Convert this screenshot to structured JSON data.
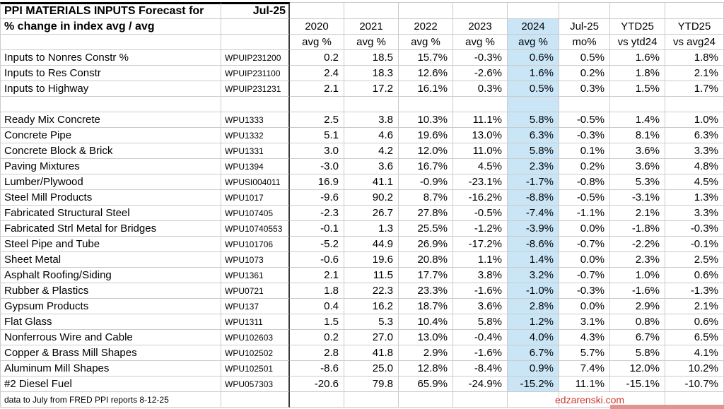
{
  "header": {
    "title": "PPI MATERIALS INPUTS Forecast for",
    "date": "Jul-25",
    "subtitle": "% change in index avg / avg"
  },
  "table": {
    "years": [
      "2020",
      "2021",
      "2022",
      "2023",
      "2024",
      "Jul-25",
      "YTD25",
      "YTD25"
    ],
    "units": [
      "avg %",
      "avg %",
      "avg %",
      "avg %",
      "avg %",
      "mo%",
      "vs ytd24",
      "vs avg24"
    ],
    "rows": [
      {
        "label": "Inputs to Nonres Constr %",
        "code": "WPUIP231200",
        "values": [
          "0.2",
          "18.5",
          "15.7%",
          "-0.3%",
          "0.6%",
          "0.5%",
          "1.6%",
          "1.8%"
        ]
      },
      {
        "label": "Inputs to Res Constr",
        "code": "WPUIP231100",
        "values": [
          "2.4",
          "18.3",
          "12.6%",
          "-2.6%",
          "1.6%",
          "0.2%",
          "1.8%",
          "2.1%"
        ]
      },
      {
        "label": "Inputs to Highway",
        "code": "WPUIP231231",
        "values": [
          "2.1",
          "17.2",
          "16.1%",
          "0.3%",
          "0.5%",
          "0.3%",
          "1.5%",
          "1.7%"
        ]
      },
      {
        "label": "",
        "code": "",
        "values": [
          "",
          "",
          "",
          "",
          "",
          "",
          "",
          ""
        ]
      },
      {
        "label": "Ready Mix Concrete",
        "code": "WPU1333",
        "values": [
          "2.5",
          "3.8",
          "10.3%",
          "11.1%",
          "5.8%",
          "-0.5%",
          "1.4%",
          "1.0%"
        ]
      },
      {
        "label": "Concrete Pipe",
        "code": "WPU1332",
        "values": [
          "5.1",
          "4.6",
          "19.6%",
          "13.0%",
          "6.3%",
          "-0.3%",
          "8.1%",
          "6.3%"
        ]
      },
      {
        "label": "Concrete Block & Brick",
        "code": "WPU1331",
        "values": [
          "3.0",
          "4.2",
          "12.0%",
          "11.0%",
          "5.8%",
          "0.1%",
          "3.6%",
          "3.3%"
        ]
      },
      {
        "label": "Paving Mixtures",
        "code": "WPU1394",
        "values": [
          "-3.0",
          "3.6",
          "16.7%",
          "4.5%",
          "2.3%",
          "0.2%",
          "3.6%",
          "4.8%"
        ]
      },
      {
        "label": "Lumber/Plywood",
        "code": "WPUSI004011",
        "values": [
          "16.9",
          "41.1",
          "-0.9%",
          "-23.1%",
          "-1.7%",
          "-0.8%",
          "5.3%",
          "4.5%"
        ]
      },
      {
        "label": "Steel Mill Products",
        "code": "WPU1017",
        "values": [
          "-9.6",
          "90.2",
          "8.7%",
          "-16.2%",
          "-8.8%",
          "-0.5%",
          "-3.1%",
          "1.3%"
        ]
      },
      {
        "label": "Fabricated Structural Steel",
        "code": "WPU107405",
        "values": [
          "-2.3",
          "26.7",
          "27.8%",
          "-0.5%",
          "-7.4%",
          "-1.1%",
          "2.1%",
          "3.3%"
        ]
      },
      {
        "label": "Fabricated Strl Metal for Bridges",
        "code": "WPU10740553",
        "values": [
          "-0.1",
          "1.3",
          "25.5%",
          "-1.2%",
          "-3.9%",
          "0.0%",
          "-1.8%",
          "-0.3%"
        ]
      },
      {
        "label": "Steel Pipe and Tube",
        "code": "WPU101706",
        "values": [
          "-5.2",
          "44.9",
          "26.9%",
          "-17.2%",
          "-8.6%",
          "-0.7%",
          "-2.2%",
          "-0.1%"
        ]
      },
      {
        "label": "Sheet Metal",
        "code": "WPU1073",
        "values": [
          "-0.6",
          "19.6",
          "20.8%",
          "1.1%",
          "1.4%",
          "0.0%",
          "2.3%",
          "2.5%"
        ]
      },
      {
        "label": "Asphalt Roofing/Siding",
        "code": "WPU1361",
        "values": [
          "2.1",
          "11.5",
          "17.7%",
          "3.8%",
          "3.2%",
          "-0.7%",
          "1.0%",
          "0.6%"
        ]
      },
      {
        "label": "Rubber & Plastics",
        "code": "WPU0721",
        "values": [
          "1.8",
          "22.3",
          "23.3%",
          "-1.6%",
          "-1.0%",
          "-0.3%",
          "-1.6%",
          "-1.3%"
        ]
      },
      {
        "label": "Gypsum Products",
        "code": "WPU137",
        "values": [
          "0.4",
          "16.2",
          "18.7%",
          "3.6%",
          "2.8%",
          "0.0%",
          "2.9%",
          "2.1%"
        ]
      },
      {
        "label": "Flat Glass",
        "code": "WPU1311",
        "values": [
          "1.5",
          "5.3",
          "10.4%",
          "5.8%",
          "1.2%",
          "3.1%",
          "0.8%",
          "0.6%"
        ]
      },
      {
        "label": "Nonferrous Wire and Cable",
        "code": "WPU102603",
        "values": [
          "0.2",
          "27.0",
          "13.0%",
          "-0.4%",
          "4.0%",
          "4.3%",
          "6.7%",
          "6.5%"
        ]
      },
      {
        "label": "Copper & Brass Mill Shapes",
        "code": "WPU102502",
        "values": [
          "2.8",
          "41.8",
          "2.9%",
          "-1.6%",
          "6.7%",
          "5.7%",
          "5.8%",
          "4.1%"
        ]
      },
      {
        "label": "Aluminum Mill Shapes",
        "code": "WPU102501",
        "values": [
          "-8.6",
          "25.0",
          "12.8%",
          "-8.4%",
          "0.9%",
          "7.4%",
          "12.0%",
          "10.2%"
        ]
      },
      {
        "label": "#2 Diesel Fuel",
        "code": "WPU057303",
        "values": [
          "-20.6",
          "79.8",
          "65.9%",
          "-24.9%",
          "-15.2%",
          "11.1%",
          "-15.1%",
          "-10.7%"
        ]
      }
    ]
  },
  "footer": {
    "note": "data to July from FRED PPI reports 8-12-25",
    "credit": "edzarenski.com"
  },
  "colors": {
    "highlight_2024_column": "#cae6f6",
    "credit_red": "#cc3a30",
    "accent_bar": "#e0948e",
    "gridline": "#cbcbcb",
    "dark_divider": "#3a3a3a"
  }
}
